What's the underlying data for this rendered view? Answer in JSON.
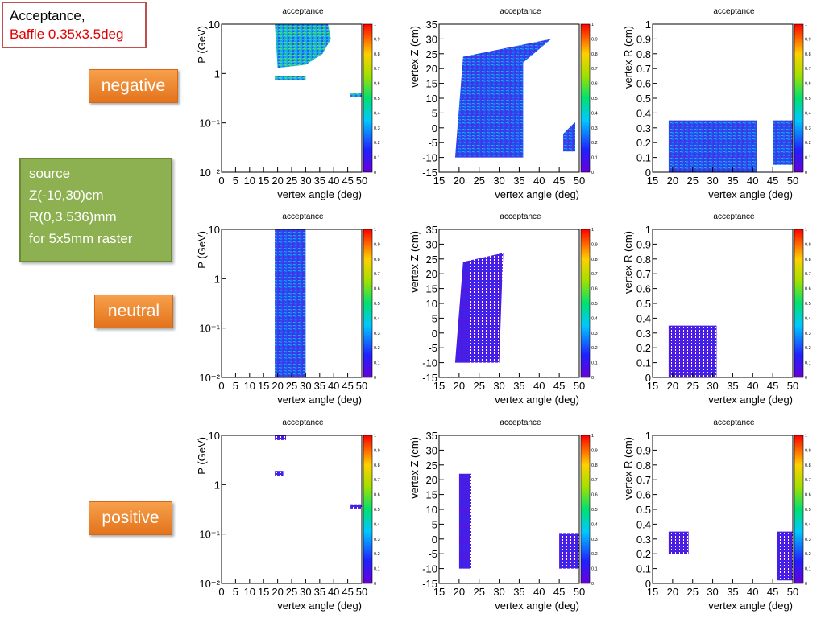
{
  "header": {
    "line1": "Acceptance,",
    "line2": "Baffle 0.35x3.5deg"
  },
  "rows": [
    {
      "label": "negative"
    },
    {
      "label": "neutral"
    },
    {
      "label": "positive"
    }
  ],
  "source_box": {
    "lines": [
      "source",
      "Z(-10,30)cm",
      "R(0,3.536)mm",
      "for 5x5mm raster"
    ]
  },
  "colors": {
    "title_border": "#c0504d",
    "title_red": "#e00000",
    "label_orange": "#f0862e",
    "source_green": "#8db050",
    "plot_fill": "#3a4fe8"
  },
  "chart_data": [
    {
      "type": "heatmap",
      "row": "negative",
      "title": "acceptance",
      "xlabel": "vertex angle (deg)",
      "ylabel": "P (GeV)",
      "xlim": [
        0,
        50
      ],
      "ylim": [
        0.01,
        10
      ],
      "ylog": true,
      "xticks": [
        "0",
        "5",
        "10",
        "15",
        "20",
        "25",
        "30",
        "35",
        "40",
        "45",
        "50"
      ],
      "yticks": [
        "10⁻²",
        "10⁻¹",
        "1",
        "10"
      ],
      "colorbar": [
        0,
        1
      ],
      "regions": [
        [
          [
            19,
            10
          ],
          [
            38,
            10
          ],
          [
            39,
            5
          ],
          [
            36,
            2.5
          ],
          [
            30,
            1.5
          ],
          [
            20,
            1.3
          ]
        ],
        [
          [
            19,
            0.9
          ],
          [
            30,
            0.9
          ],
          [
            30,
            0.75
          ],
          [
            19,
            0.75
          ]
        ],
        [
          [
            46,
            0.4
          ],
          [
            50,
            0.4
          ],
          [
            50,
            0.33
          ],
          [
            46,
            0.33
          ]
        ]
      ]
    },
    {
      "type": "heatmap",
      "row": "negative",
      "title": "acceptance",
      "xlabel": "vertex angle (deg)",
      "ylabel": "vertex Z (cm)",
      "xlim": [
        15,
        50
      ],
      "ylim": [
        -15,
        35
      ],
      "ylog": false,
      "xticks": [
        "15",
        "20",
        "25",
        "30",
        "35",
        "40",
        "45",
        "50"
      ],
      "yticks": [
        "-15",
        "-10",
        "-5",
        "0",
        "5",
        "10",
        "15",
        "20",
        "25",
        "30",
        "35"
      ],
      "colorbar": [
        0,
        1
      ],
      "regions": [
        [
          [
            19,
            -10
          ],
          [
            36,
            -10
          ],
          [
            36,
            22
          ],
          [
            43,
            30
          ],
          [
            21,
            24
          ]
        ],
        [
          [
            46,
            -8
          ],
          [
            49,
            -8
          ],
          [
            49,
            2
          ],
          [
            46,
            -2
          ]
        ]
      ]
    },
    {
      "type": "heatmap",
      "row": "negative",
      "title": "acceptance",
      "xlabel": "vertex angle (deg)",
      "ylabel": "vertex R (cm)",
      "xlim": [
        15,
        50
      ],
      "ylim": [
        0,
        1
      ],
      "ylog": false,
      "xticks": [
        "15",
        "20",
        "25",
        "30",
        "35",
        "40",
        "45",
        "50"
      ],
      "yticks": [
        "0",
        "0.1",
        "0.2",
        "0.3",
        "0.4",
        "0.5",
        "0.6",
        "0.7",
        "0.8",
        "0.9",
        "1"
      ],
      "colorbar": [
        0,
        1
      ],
      "regions": [
        [
          [
            19,
            0
          ],
          [
            41,
            0
          ],
          [
            41,
            0.35
          ],
          [
            19,
            0.35
          ]
        ],
        [
          [
            45,
            0.05
          ],
          [
            50,
            0.05
          ],
          [
            50,
            0.35
          ],
          [
            45,
            0.35
          ]
        ]
      ]
    },
    {
      "type": "heatmap",
      "row": "neutral",
      "title": "acceptance",
      "xlabel": "vertex angle (deg)",
      "ylabel": "P (GeV)",
      "xlim": [
        0,
        50
      ],
      "ylim": [
        0.01,
        10
      ],
      "ylog": true,
      "xticks": [
        "0",
        "5",
        "10",
        "15",
        "20",
        "25",
        "30",
        "35",
        "40",
        "45",
        "50"
      ],
      "yticks": [
        "10⁻²",
        "10⁻¹",
        "1",
        "10"
      ],
      "colorbar": [
        0,
        1
      ],
      "regions": [
        [
          [
            19,
            0.01
          ],
          [
            30,
            0.01
          ],
          [
            30,
            10
          ],
          [
            19,
            10
          ]
        ]
      ]
    },
    {
      "type": "heatmap",
      "row": "neutral",
      "title": "acceptance",
      "xlabel": "vertex angle (deg)",
      "ylabel": "vertex Z (cm)",
      "xlim": [
        15,
        50
      ],
      "ylim": [
        -15,
        35
      ],
      "ylog": false,
      "xticks": [
        "15",
        "20",
        "25",
        "30",
        "35",
        "40",
        "45",
        "50"
      ],
      "yticks": [
        "-15",
        "-10",
        "-5",
        "0",
        "5",
        "10",
        "15",
        "20",
        "25",
        "30",
        "35"
      ],
      "colorbar": [
        0,
        1
      ],
      "regions": [
        [
          [
            19,
            -10
          ],
          [
            30,
            -10
          ],
          [
            31,
            27
          ],
          [
            21,
            24
          ]
        ]
      ]
    },
    {
      "type": "heatmap",
      "row": "neutral",
      "title": "acceptance",
      "xlabel": "vertex angle (deg)",
      "ylabel": "vertex R (cm)",
      "xlim": [
        15,
        50
      ],
      "ylim": [
        0,
        1
      ],
      "ylog": false,
      "xticks": [
        "15",
        "20",
        "25",
        "30",
        "35",
        "40",
        "45",
        "50"
      ],
      "yticks": [
        "0",
        "0.1",
        "0.2",
        "0.3",
        "0.4",
        "0.5",
        "0.6",
        "0.7",
        "0.8",
        "0.9",
        "1"
      ],
      "colorbar": [
        0,
        1
      ],
      "regions": [
        [
          [
            19,
            0
          ],
          [
            31,
            0
          ],
          [
            31,
            0.35
          ],
          [
            19,
            0.35
          ]
        ]
      ]
    },
    {
      "type": "heatmap",
      "row": "positive",
      "title": "acceptance",
      "xlabel": "vertex angle (deg)",
      "ylabel": "P (GeV)",
      "xlim": [
        0,
        50
      ],
      "ylim": [
        0.01,
        10
      ],
      "ylog": true,
      "xticks": [
        "0",
        "5",
        "10",
        "15",
        "20",
        "25",
        "30",
        "35",
        "40",
        "45",
        "50"
      ],
      "yticks": [
        "10⁻²",
        "10⁻¹",
        "1",
        "10"
      ],
      "colorbar": [
        0,
        1
      ],
      "regions": [
        [
          [
            19,
            10
          ],
          [
            23,
            10
          ],
          [
            23,
            8
          ],
          [
            19,
            8
          ]
        ],
        [
          [
            19,
            1.9
          ],
          [
            22,
            1.9
          ],
          [
            22,
            1.5
          ],
          [
            19,
            1.5
          ]
        ],
        [
          [
            46,
            0.4
          ],
          [
            50,
            0.4
          ],
          [
            50,
            0.33
          ],
          [
            46,
            0.33
          ]
        ]
      ]
    },
    {
      "type": "heatmap",
      "row": "positive",
      "title": "acceptance",
      "xlabel": "vertex angle (deg)",
      "ylabel": "vertex Z (cm)",
      "xlim": [
        15,
        50
      ],
      "ylim": [
        -15,
        35
      ],
      "ylog": false,
      "xticks": [
        "15",
        "20",
        "25",
        "30",
        "35",
        "40",
        "45",
        "50"
      ],
      "yticks": [
        "-15",
        "-10",
        "-5",
        "0",
        "5",
        "10",
        "15",
        "20",
        "25",
        "30",
        "35"
      ],
      "colorbar": [
        0,
        1
      ],
      "regions": [
        [
          [
            20,
            -10
          ],
          [
            23,
            -10
          ],
          [
            23,
            22
          ],
          [
            20,
            22
          ]
        ],
        [
          [
            45,
            -10
          ],
          [
            50,
            -10
          ],
          [
            50,
            2
          ],
          [
            45,
            2
          ]
        ]
      ]
    },
    {
      "type": "heatmap",
      "row": "positive",
      "title": "acceptance",
      "xlabel": "vertex angle (deg)",
      "ylabel": "vertex R (cm)",
      "xlim": [
        15,
        50
      ],
      "ylim": [
        0,
        1
      ],
      "ylog": false,
      "xticks": [
        "15",
        "20",
        "25",
        "30",
        "35",
        "40",
        "45",
        "50"
      ],
      "yticks": [
        "0",
        "0.1",
        "0.2",
        "0.3",
        "0.4",
        "0.5",
        "0.6",
        "0.7",
        "0.8",
        "0.9",
        "1"
      ],
      "colorbar": [
        0,
        1
      ],
      "regions": [
        [
          [
            19,
            0.2
          ],
          [
            24,
            0.2
          ],
          [
            24,
            0.35
          ],
          [
            19,
            0.35
          ]
        ],
        [
          [
            46,
            0.02
          ],
          [
            50,
            0.02
          ],
          [
            50,
            0.35
          ],
          [
            46,
            0.35
          ]
        ]
      ]
    }
  ]
}
